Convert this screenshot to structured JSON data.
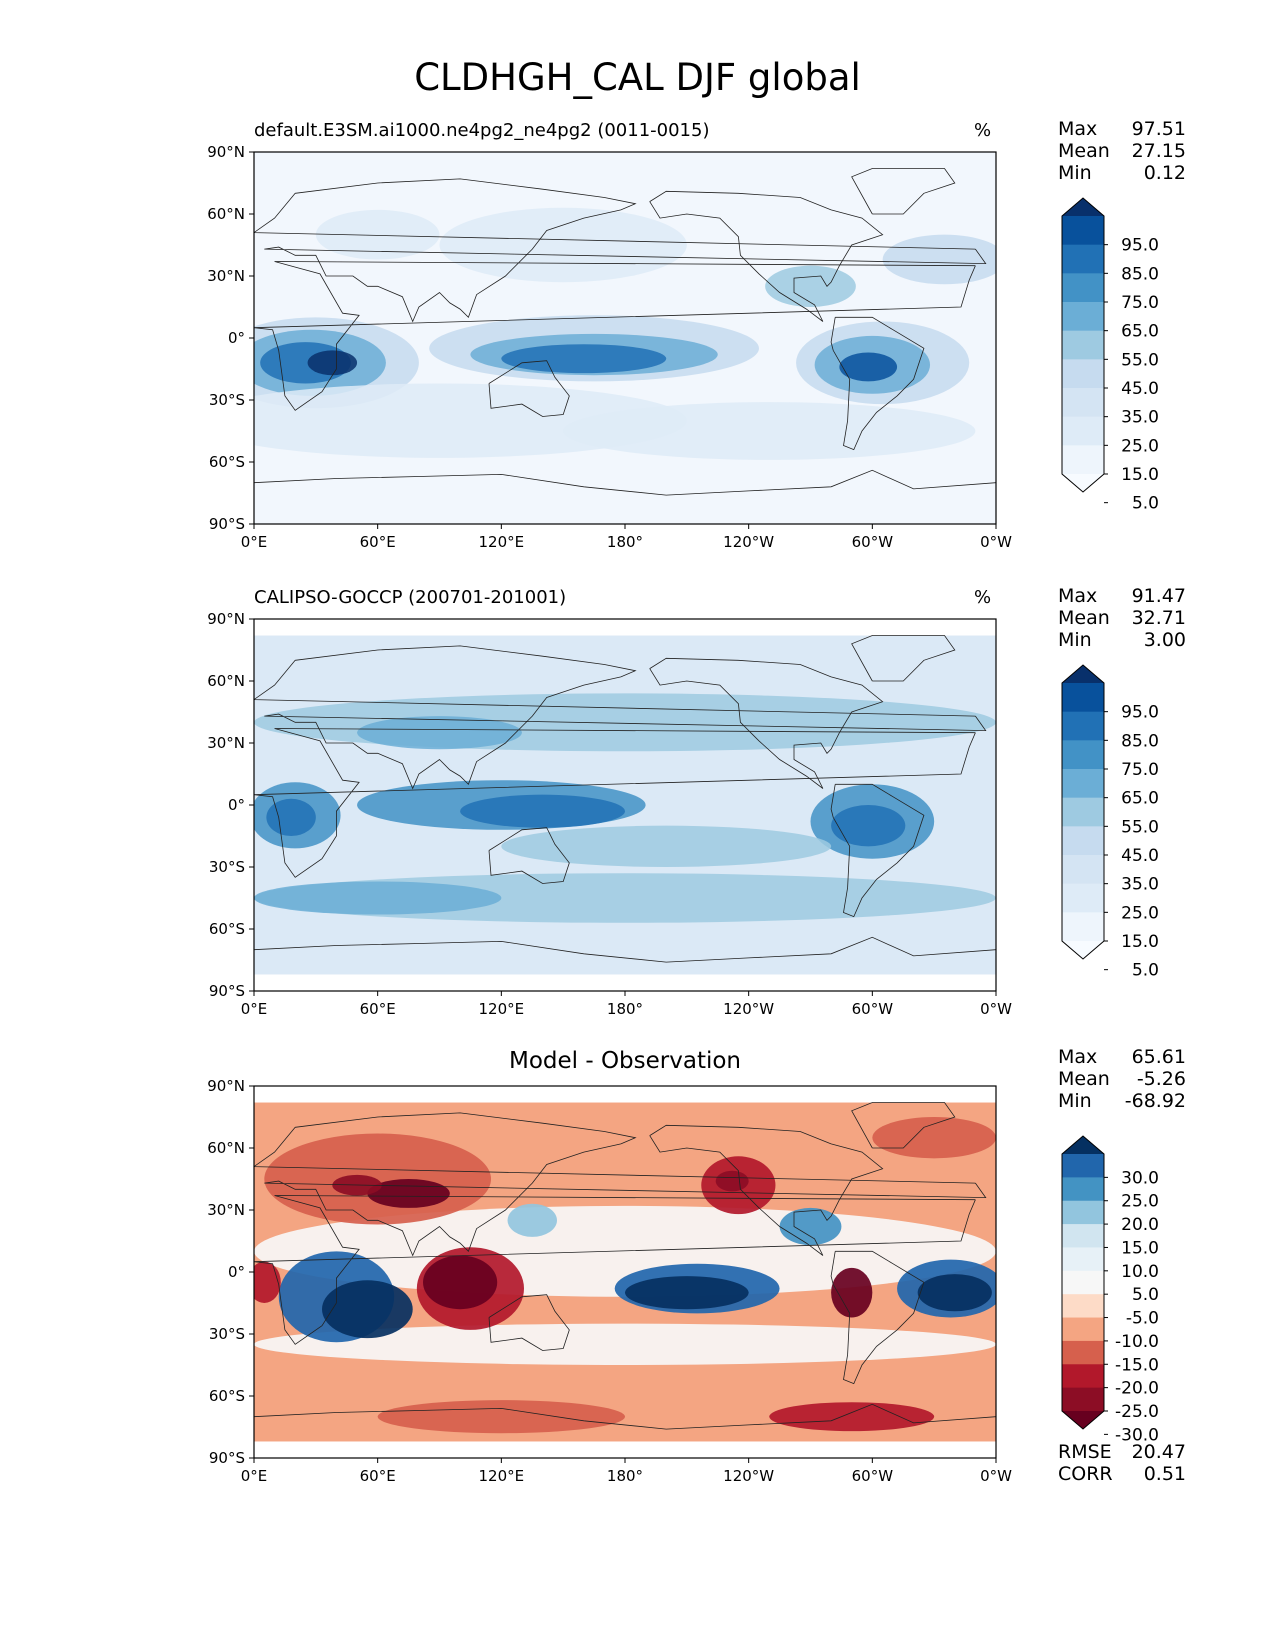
{
  "title": "CLDHGH_CAL DJF global",
  "x_ticks": [
    "0°E",
    "60°E",
    "120°E",
    "180°",
    "120°W",
    "60°W",
    "0°W"
  ],
  "y_ticks": [
    "90°N",
    "60°N",
    "30°N",
    "0°",
    "30°S",
    "60°S",
    "90°S"
  ],
  "panels": [
    {
      "title": "default.E3SM.ai1000.ne4pg2_ne4pg2 (0011-0015)",
      "unit": "%",
      "stats": {
        "Max": "97.51",
        "Mean": "27.15",
        "Min": "0.12"
      },
      "colorbar": {
        "labels": [
          "95.0",
          "85.0",
          "75.0",
          "65.0",
          "55.0",
          "45.0",
          "35.0",
          "25.0",
          "15.0",
          "5.0"
        ],
        "colors": [
          "#08306b",
          "#08519c",
          "#2171b5",
          "#4292c6",
          "#6baed6",
          "#9ecae1",
          "#c6dbef",
          "#d4e4f3",
          "#deebf7",
          "#eef5fc",
          "#f7fbff"
        ]
      }
    },
    {
      "title": "CALIPSO-GOCCP (200701-201001)",
      "unit": "%",
      "stats": {
        "Max": "91.47",
        "Mean": "32.71",
        "Min": "3.00"
      },
      "colorbar": {
        "labels": [
          "95.0",
          "85.0",
          "75.0",
          "65.0",
          "55.0",
          "45.0",
          "35.0",
          "25.0",
          "15.0",
          "5.0"
        ],
        "colors": [
          "#08306b",
          "#08519c",
          "#2171b5",
          "#4292c6",
          "#6baed6",
          "#9ecae1",
          "#c6dbef",
          "#d4e4f3",
          "#deebf7",
          "#eef5fc",
          "#f7fbff"
        ]
      }
    },
    {
      "title": "Model - Observation",
      "unit": "",
      "stats": {
        "Max": "65.61",
        "Mean": "-5.26",
        "Min": "-68.92"
      },
      "stats_bottom": {
        "RMSE": "20.47",
        "CORR": "0.51"
      },
      "colorbar": {
        "labels": [
          "30.0",
          "25.0",
          "20.0",
          "15.0",
          "10.0",
          "5.0",
          "-5.0",
          "-10.0",
          "-15.0",
          "-20.0",
          "-25.0",
          "-30.0"
        ],
        "colors": [
          "#053061",
          "#2166ac",
          "#4393c3",
          "#92c5de",
          "#d1e5f0",
          "#e7f1f7",
          "#f7f7f7",
          "#fddbc7",
          "#f4a582",
          "#d6604d",
          "#b2182b",
          "#8c0d25",
          "#67001f"
        ]
      }
    }
  ]
}
